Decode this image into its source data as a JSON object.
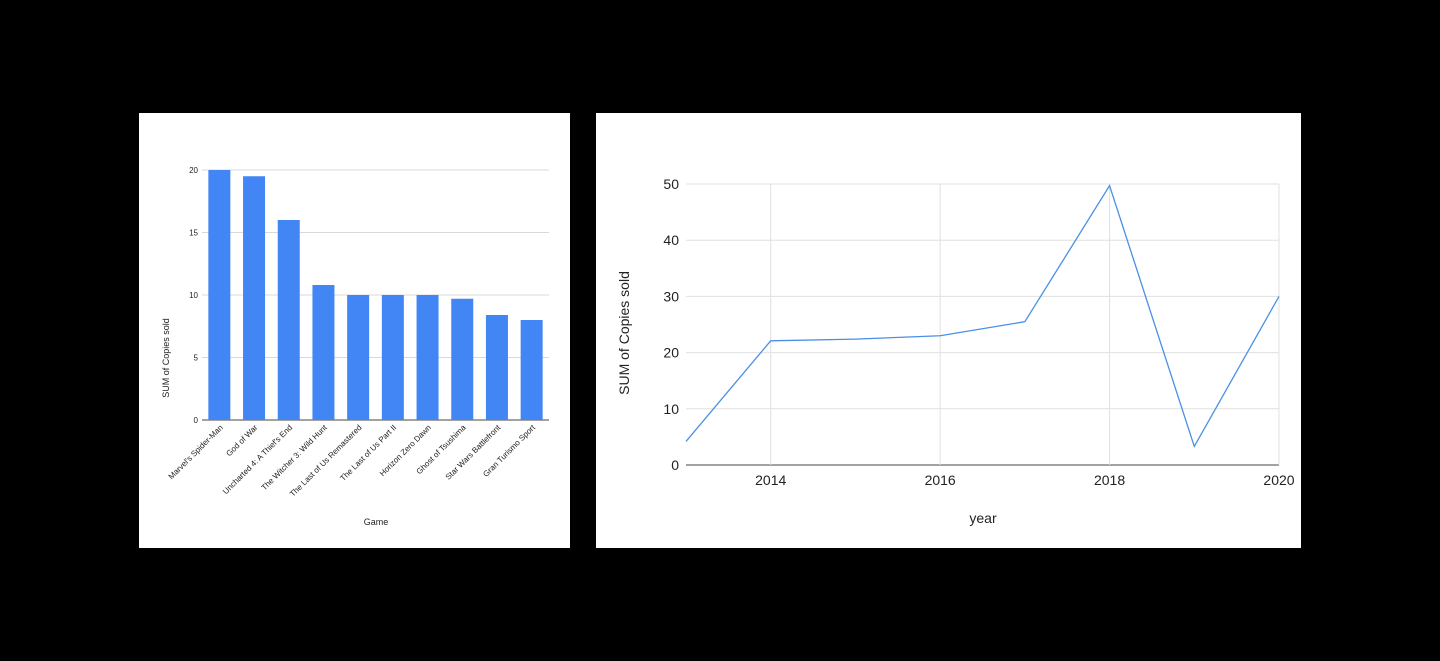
{
  "chart_data": [
    {
      "type": "bar",
      "categories": [
        "Marvel's Spider-Man",
        "God of War",
        "Uncharted 4: A Thief's End",
        "The Witcher 3: Wild Hunt",
        "The Last of Us Remastered",
        "The Last of Us Part II",
        "Horizon Zero Dawn",
        "Ghost of Tsushima",
        "Star Wars Battlefront",
        "Gran Turismo Sport"
      ],
      "values": [
        20,
        19.5,
        16,
        10.8,
        10,
        10,
        10,
        9.7,
        8.4,
        8
      ],
      "xlabel": "Game",
      "ylabel": "SUM of Copies sold",
      "ylim": [
        0,
        20
      ],
      "yticks": [
        0,
        5,
        10,
        15,
        20
      ],
      "grid": true,
      "color": "#4285f4"
    },
    {
      "type": "line",
      "x": [
        2013,
        2014,
        2015,
        2016,
        2017,
        2018,
        2019,
        2020
      ],
      "values": [
        4.2,
        22.1,
        22.4,
        23,
        25.5,
        49.7,
        3.3,
        30
      ],
      "xlabel": "year",
      "ylabel": "SUM of Copies sold",
      "xlim": [
        2013,
        2020
      ],
      "ylim": [
        0,
        50
      ],
      "xticks": [
        2014,
        2016,
        2018,
        2020
      ],
      "yticks": [
        0,
        10,
        20,
        30,
        40,
        50
      ],
      "grid": true,
      "color": "#4a8fe7"
    }
  ]
}
